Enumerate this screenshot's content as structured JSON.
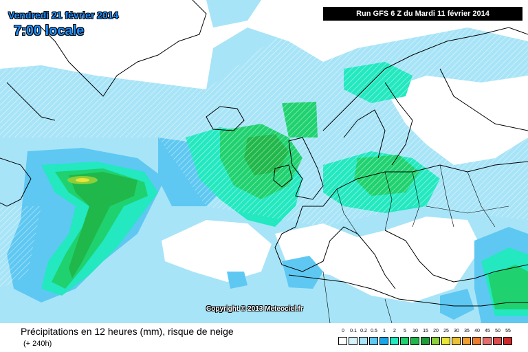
{
  "header": {
    "date": "Vendredi 21 février 2014",
    "time": "7:00 locale",
    "run": "Run GFS 6 Z du Mardi 11 février 2014"
  },
  "copyright": "Copyright © 2013 Meteociel.fr",
  "footer": {
    "title": "Précipitations en 12 heures (mm), risque de neige",
    "subtitle": "(+ 240h)"
  },
  "legend": {
    "labels": [
      "0",
      "0.1",
      "0.2",
      "0.5",
      "1",
      "2",
      "5",
      "10",
      "15",
      "20",
      "25",
      "30",
      "35",
      "40",
      "45",
      "50",
      "55"
    ],
    "colors": [
      "#ffffff",
      "#d8f2fb",
      "#a8e4f7",
      "#5ec8f2",
      "#1aa5e8",
      "#23e8c0",
      "#1fd26f",
      "#20b84a",
      "#1f9c3c",
      "#8ccf3a",
      "#e8e639",
      "#ecc235",
      "#f0a030",
      "#ef7c2c",
      "#e66c6c",
      "#dd4c4c",
      "#cc2a2a"
    ]
  },
  "colors": {
    "light_blue": "#a8e4f7",
    "mid_blue": "#5ec8f2",
    "blue": "#1aa5e8",
    "teal": "#23e8c0",
    "green": "#1fd26f",
    "dark_green": "#20b84a"
  }
}
